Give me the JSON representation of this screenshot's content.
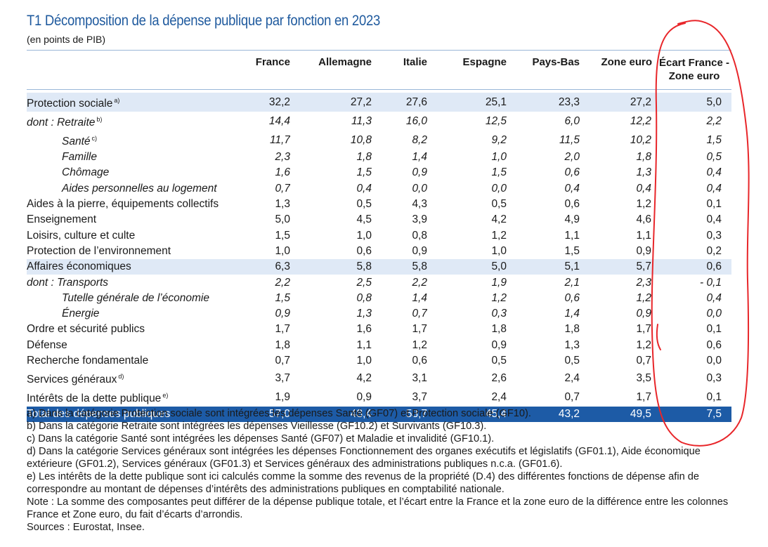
{
  "title": "T1  Décomposition de la dépense publique par fonction en 2023",
  "subtitle": "(en points de PIB)",
  "columns": [
    "France",
    "Allemagne",
    "Italie",
    "Espagne",
    "Pays-Bas",
    "Zone euro"
  ],
  "last_column": {
    "line1": "Écart France -",
    "line2": "Zone euro"
  },
  "rows": [
    {
      "prefix": "",
      "label": "Protection sociale",
      "note": "a)",
      "values": [
        "32,2",
        "27,2",
        "27,6",
        "25,1",
        "23,3",
        "27,2",
        "5,0"
      ]
    },
    {
      "prefix": "dont : ",
      "label": "Retraite",
      "note": "b)",
      "values": [
        "14,4",
        "11,3",
        "16,0",
        "12,5",
        "6,0",
        "12,2",
        "2,2"
      ]
    },
    {
      "prefix": "",
      "label": "Santé",
      "note": "c)",
      "values": [
        "11,7",
        "10,8",
        "8,2",
        "9,2",
        "11,5",
        "10,2",
        "1,5"
      ]
    },
    {
      "prefix": "",
      "label": "Famille",
      "note": "",
      "values": [
        "2,3",
        "1,8",
        "1,4",
        "1,0",
        "2,0",
        "1,8",
        "0,5"
      ]
    },
    {
      "prefix": "",
      "label": "Chômage",
      "note": "",
      "values": [
        "1,6",
        "1,5",
        "0,9",
        "1,5",
        "0,6",
        "1,3",
        "0,4"
      ]
    },
    {
      "prefix": "",
      "label": "Aides personnelles au logement",
      "note": "",
      "values": [
        "0,7",
        "0,4",
        "0,0",
        "0,0",
        "0,4",
        "0,4",
        "0,4"
      ]
    },
    {
      "prefix": "",
      "label": "Aides à la pierre, équipements collectifs",
      "note": "",
      "values": [
        "1,3",
        "0,5",
        "4,3",
        "0,5",
        "0,6",
        "1,2",
        "0,1"
      ]
    },
    {
      "prefix": "",
      "label": "Enseignement",
      "note": "",
      "values": [
        "5,0",
        "4,5",
        "3,9",
        "4,2",
        "4,9",
        "4,6",
        "0,4"
      ]
    },
    {
      "prefix": "",
      "label": "Loisirs, culture et culte",
      "note": "",
      "values": [
        "1,5",
        "1,0",
        "0,8",
        "1,2",
        "1,1",
        "1,1",
        "0,3"
      ]
    },
    {
      "prefix": "",
      "label": "Protection de l’environnement",
      "note": "",
      "values": [
        "1,0",
        "0,6",
        "0,9",
        "1,0",
        "1,5",
        "0,9",
        "0,2"
      ]
    },
    {
      "prefix": "",
      "label": "Affaires économiques",
      "note": "",
      "values": [
        "6,3",
        "5,8",
        "5,8",
        "5,0",
        "5,1",
        "5,7",
        "0,6"
      ]
    },
    {
      "prefix": "dont : ",
      "label": "Transports",
      "note": "",
      "values": [
        "2,2",
        "2,5",
        "2,2",
        "1,9",
        "2,1",
        "2,3",
        "- 0,1"
      ]
    },
    {
      "prefix": "",
      "label": "Tutelle générale de l’économie",
      "note": "",
      "values": [
        "1,5",
        "0,8",
        "1,4",
        "1,2",
        "0,6",
        "1,2",
        "0,4"
      ]
    },
    {
      "prefix": "",
      "label": "Énergie",
      "note": "",
      "values": [
        "0,9",
        "1,3",
        "0,7",
        "0,3",
        "1,4",
        "0,9",
        "0,0"
      ]
    },
    {
      "prefix": "",
      "label": "Ordre et sécurité publics",
      "note": "",
      "values": [
        "1,7",
        "1,6",
        "1,7",
        "1,8",
        "1,8",
        "1,7",
        "0,1"
      ]
    },
    {
      "prefix": "",
      "label": "Défense",
      "note": "",
      "values": [
        "1,8",
        "1,1",
        "1,2",
        "0,9",
        "1,3",
        "1,2",
        "0,6"
      ]
    },
    {
      "prefix": "",
      "label": "Recherche fondamentale",
      "note": "",
      "values": [
        "0,7",
        "1,0",
        "0,6",
        "0,5",
        "0,5",
        "0,7",
        "0,0"
      ]
    },
    {
      "prefix": "",
      "label": "Services généraux",
      "note": "d)",
      "values": [
        "3,7",
        "4,2",
        "3,1",
        "2,6",
        "2,4",
        "3,5",
        "0,3"
      ]
    },
    {
      "prefix": "",
      "label": "Intérêts de la dette publique",
      "note": "e)",
      "values": [
        "1,9",
        "0,9",
        "3,7",
        "2,4",
        "0,7",
        "1,7",
        "0,1"
      ]
    },
    {
      "prefix": "",
      "label": "Total des dépenses publiques",
      "note": "",
      "values": [
        "57,0",
        "48,4",
        "53,7",
        "45,4",
        "43,2",
        "49,5",
        "7,5"
      ]
    }
  ],
  "notes": [
    "a)  Dans la catégorie Protection sociale sont intégrées les dépenses Santé (GF07) et Protection sociale (GF10).",
    "b)  Dans la catégorie Retraite sont intégrées les dépenses Vieillesse (GF10.2) et Survivants (GF10.3).",
    "c)  Dans la catégorie Santé sont intégrées les dépenses Santé (GF07) et Maladie et invalidité (GF10.1).",
    "d)  Dans la catégorie Services généraux sont intégrées les dépenses Fonctionnement des organes exécutifs et législatifs (GF01.1), Aide économique extérieure (GF01.2), Services généraux (GF01.3) et Services généraux des administrations publiques n.c.a. (GF01.6).",
    "e)  Les intérêts de la dette publique sont ici calculés comme la somme des revenus de la propriété (D.4) des différentes fonctions de dépense afin de correspondre au montant de dépenses d’intérêts des administrations publiques en comptabilité nationale.",
    "Note : La somme des composantes peut différer de la dépense publique totale, et l’écart entre la France et la zone euro de la différence entre les colonnes France et Zone euro, du fait d’écarts d’arrondis.",
    "Sources : Eurostat, Insee."
  ],
  "colors": {
    "title": "#1f5a9e",
    "shade": "#dfe9f6",
    "total": "#1d5ba6",
    "annotation": "#e8262a"
  }
}
